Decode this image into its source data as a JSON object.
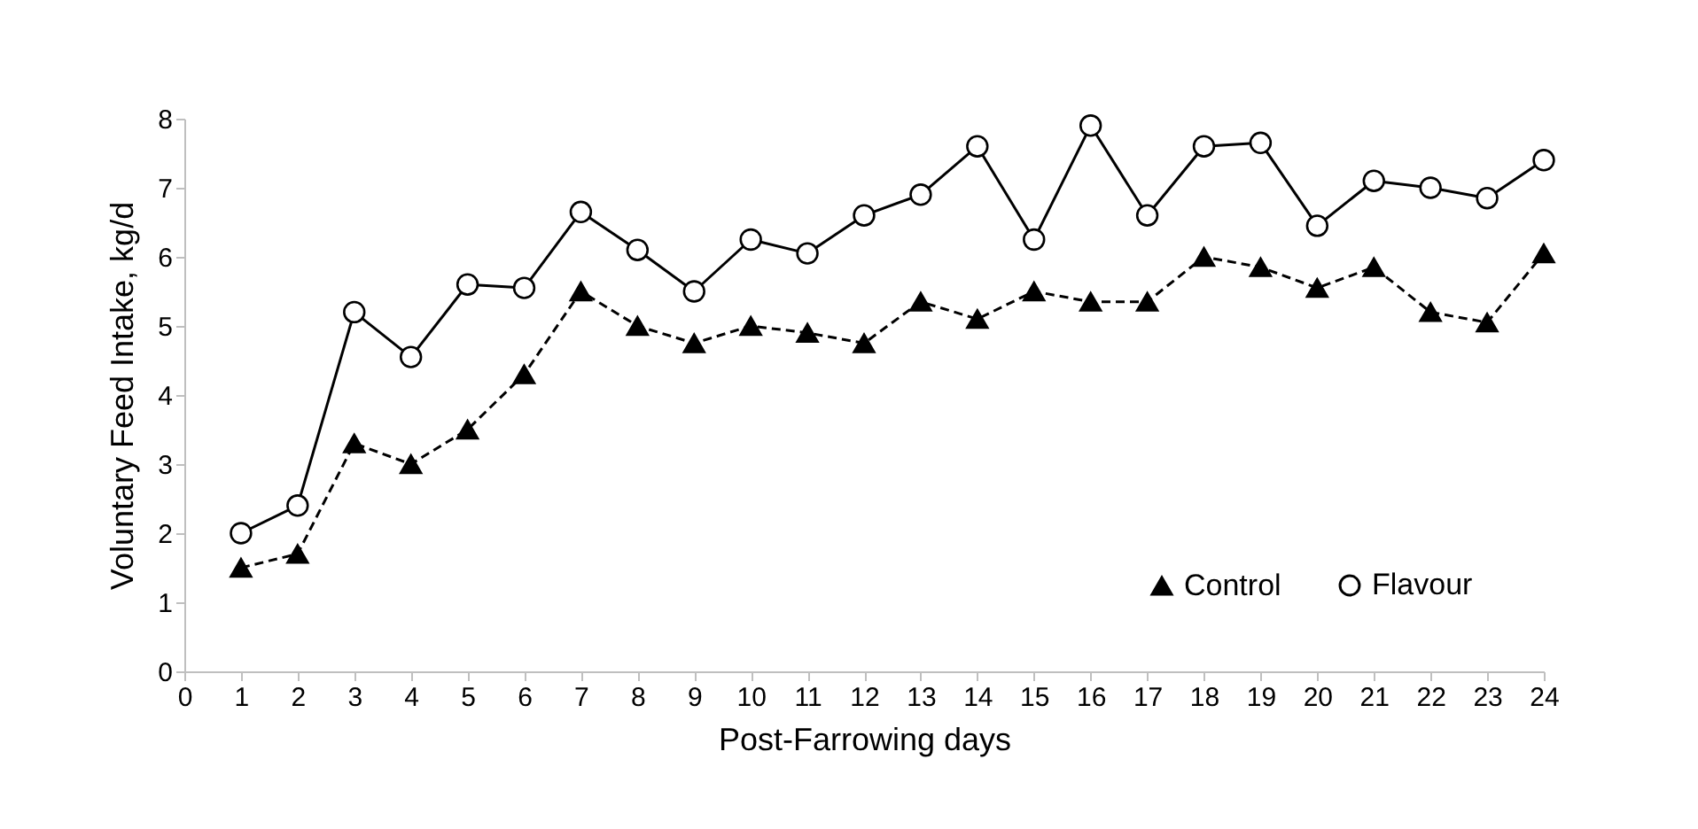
{
  "chart_data": {
    "type": "line",
    "xlabel": "Post-Farrowing days",
    "ylabel": "Voluntary Feed Intake, kg/d",
    "x": [
      1,
      2,
      3,
      4,
      5,
      6,
      7,
      8,
      9,
      10,
      11,
      12,
      13,
      14,
      15,
      16,
      17,
      18,
      19,
      20,
      21,
      22,
      23,
      24
    ],
    "series": [
      {
        "name": "Control",
        "color": "#000000",
        "marker": "triangle",
        "line_style": "dashed",
        "values": [
          1.5,
          1.7,
          3.3,
          3.0,
          3.5,
          4.3,
          5.5,
          5.0,
          4.75,
          5.0,
          4.9,
          4.75,
          5.35,
          5.1,
          5.5,
          5.35,
          5.35,
          6.0,
          5.85,
          5.55,
          5.85,
          5.2,
          5.05,
          6.05
        ]
      },
      {
        "name": "Flavour",
        "color": "#000000",
        "marker": "circle",
        "line_style": "solid",
        "values": [
          2.0,
          2.4,
          5.2,
          4.55,
          5.6,
          5.55,
          6.65,
          6.1,
          5.5,
          6.25,
          6.05,
          6.6,
          6.9,
          7.6,
          6.25,
          7.9,
          6.6,
          7.6,
          7.65,
          6.45,
          7.1,
          7.0,
          6.85,
          7.4
        ]
      }
    ],
    "xlim": [
      0,
      24
    ],
    "xticks": [
      0,
      1,
      2,
      3,
      4,
      5,
      6,
      7,
      8,
      9,
      10,
      11,
      12,
      13,
      14,
      15,
      16,
      17,
      18,
      19,
      20,
      21,
      22,
      23,
      24
    ],
    "ylim": [
      0,
      8
    ],
    "yticks": [
      0,
      1,
      2,
      3,
      4,
      5,
      6,
      7,
      8
    ],
    "grid": false,
    "legend": "bottom right"
  }
}
